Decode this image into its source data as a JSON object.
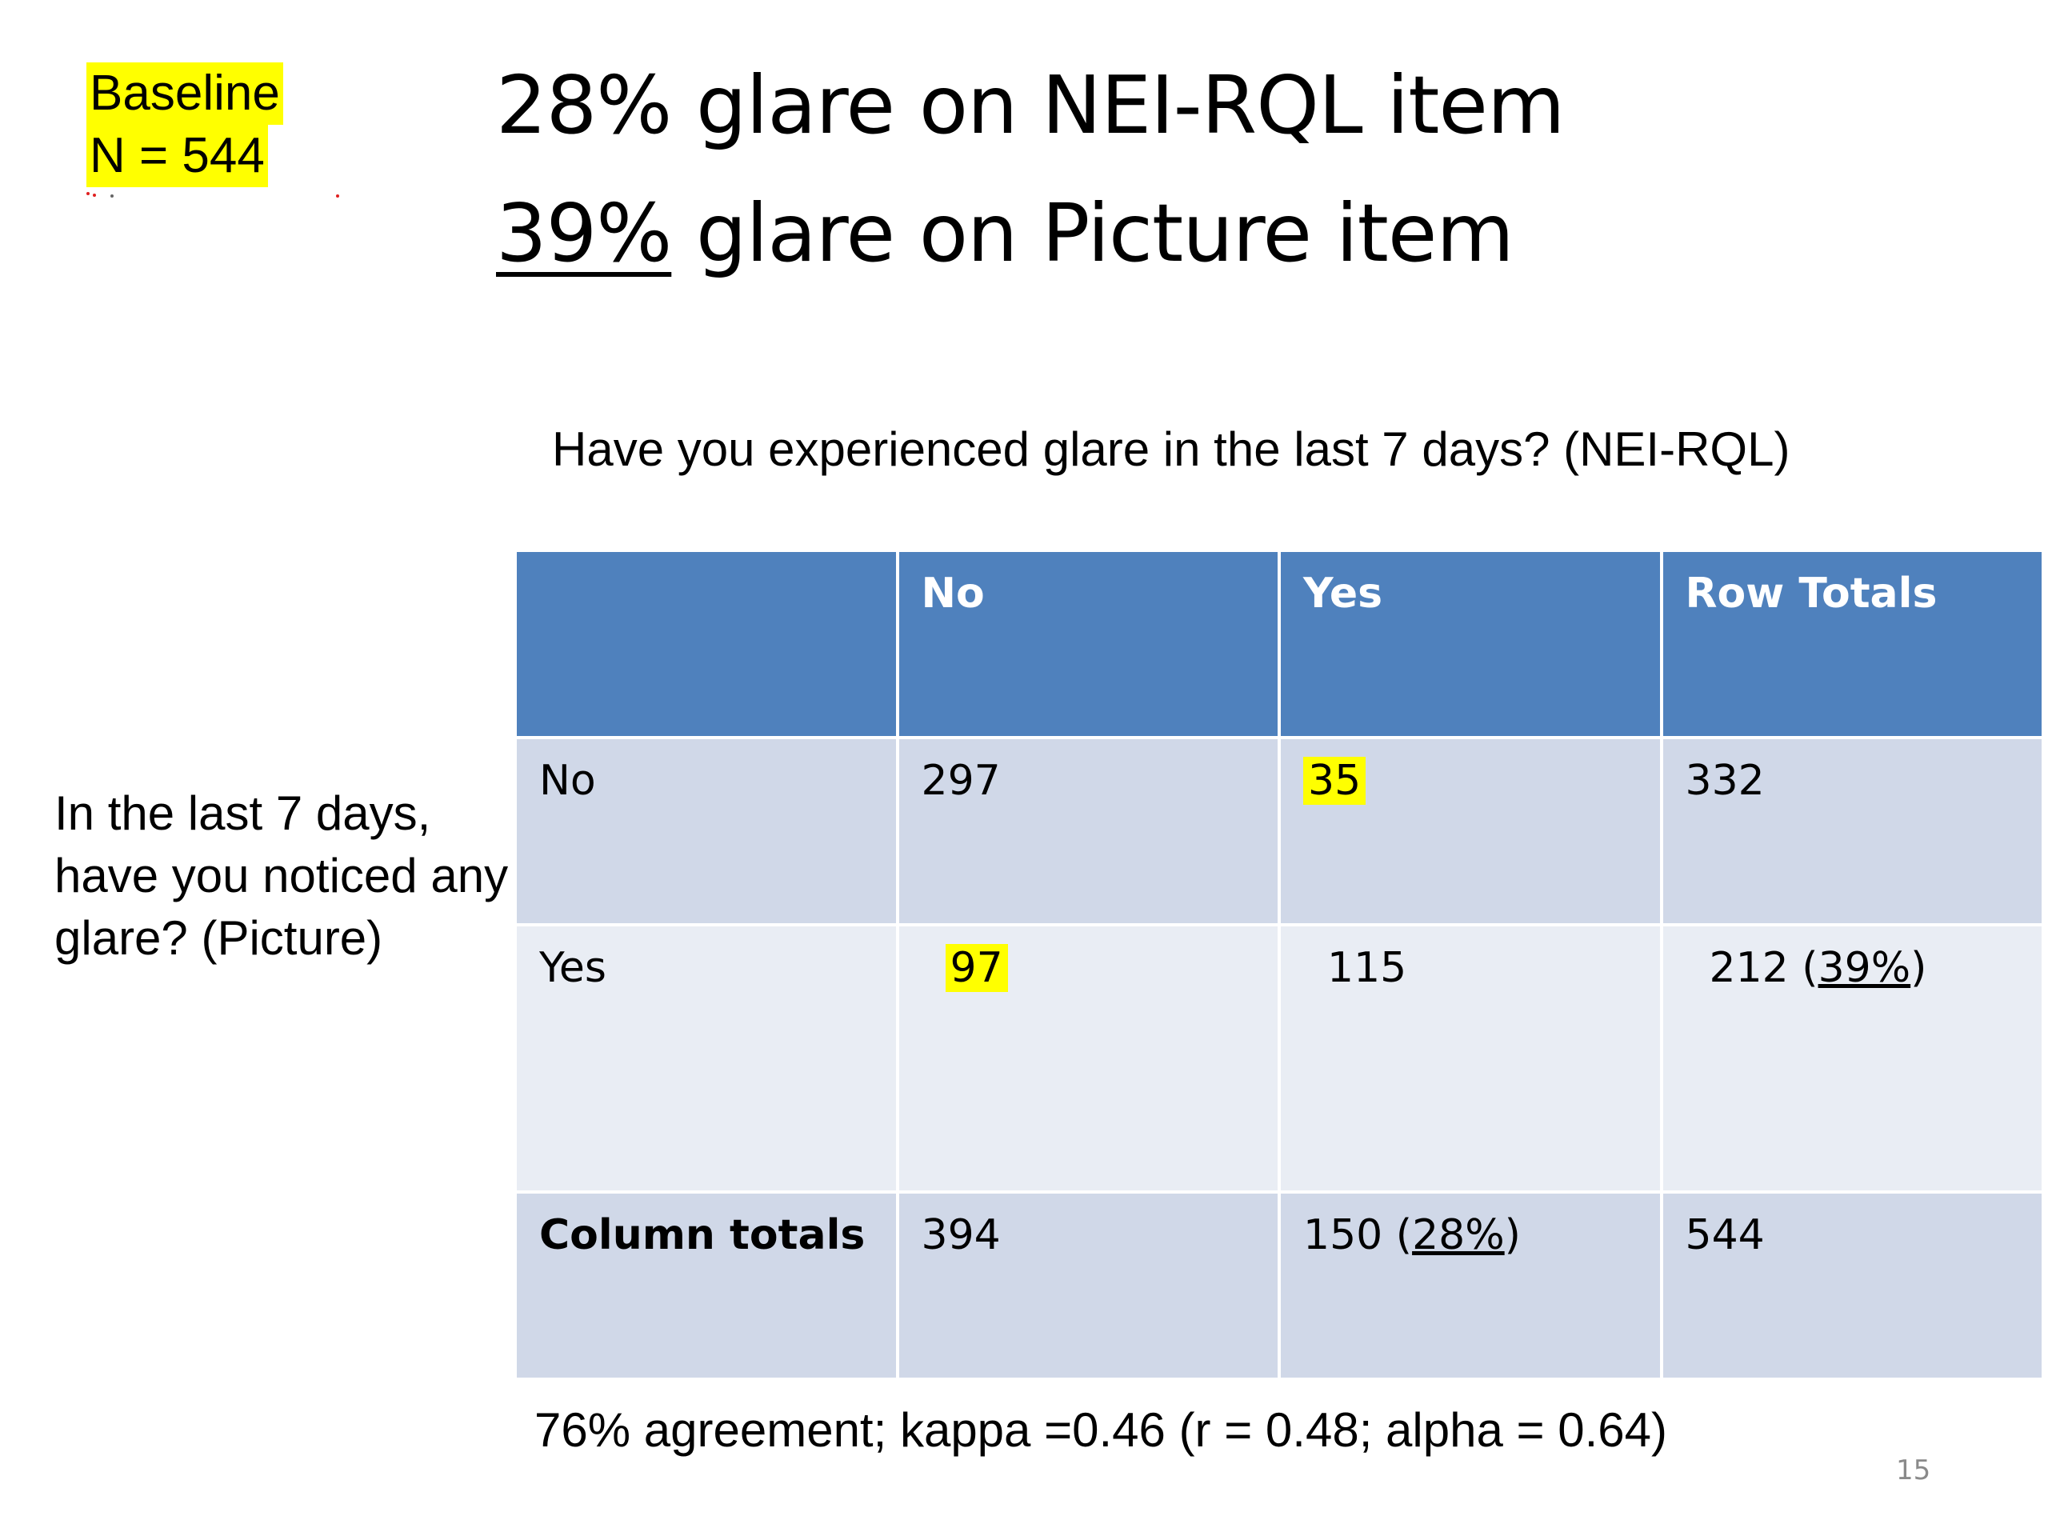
{
  "baseline": {
    "line1": "Baseline",
    "line2": "N = 544",
    "highlight_color": "#ffff00"
  },
  "title": {
    "line1": "28% glare on NEI-RQL item",
    "line2_pct": "39%",
    "line2_rest": " glare on Picture item"
  },
  "question_top": "Have you experienced glare in the last 7 days? (NEI-RQL)",
  "question_left": "In the last 7 days, have you noticed any glare? (Picture)",
  "table": {
    "header_color": "#4f81bd",
    "headers": [
      "",
      "No",
      "Yes",
      "Row Totals"
    ],
    "rows": [
      {
        "label": "No",
        "no": "297",
        "yes": "35",
        "total": "332",
        "total_pct": ""
      },
      {
        "label": "Yes",
        "no": "97",
        "yes": "115",
        "total": "212 (",
        "total_pct": "39%"
      }
    ],
    "totals": {
      "label": "Column totals",
      "no": "394",
      "yes": "150 (",
      "yes_pct": "28%",
      "total": "544"
    }
  },
  "footer": "76% agreement; kappa =0.46 (r = 0.48; alpha = 0.64)",
  "page_number": "15"
}
